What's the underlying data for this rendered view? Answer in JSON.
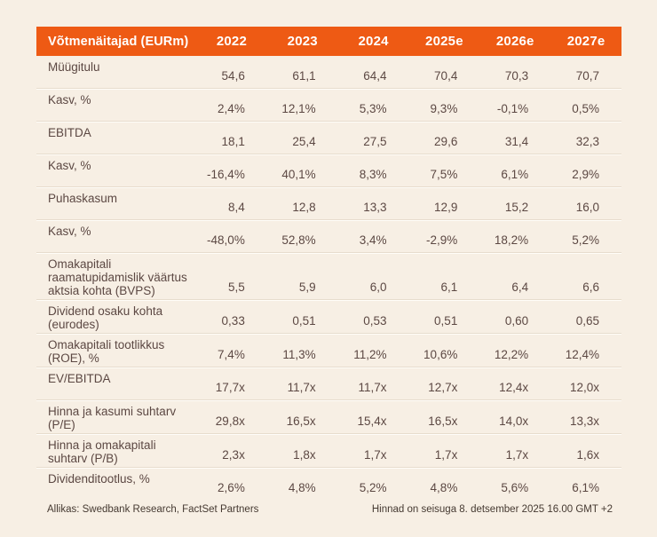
{
  "theme": {
    "background": "#f7efe4",
    "header_bg": "#ee5a14",
    "header_text": "#ffffff",
    "body_text": "#5c4843"
  },
  "table": {
    "header": {
      "label": "Võtmenäitajad (EURm)",
      "years": [
        "2022",
        "2023",
        "2024",
        "2025e",
        "2026e",
        "2027e"
      ]
    },
    "rows": [
      {
        "label": "Müügitulu",
        "values": [
          "54,6",
          "61,1",
          "64,4",
          "70,4",
          "70,3",
          "70,7"
        ]
      },
      {
        "label": "Kasv, %",
        "values": [
          "2,4%",
          "12,1%",
          "5,3%",
          "9,3%",
          "-0,1%",
          "0,5%"
        ]
      },
      {
        "label": "EBITDA",
        "values": [
          "18,1",
          "25,4",
          "27,5",
          "29,6",
          "31,4",
          "32,3"
        ]
      },
      {
        "label": "Kasv, %",
        "values": [
          "-16,4%",
          "40,1%",
          "8,3%",
          "7,5%",
          "6,1%",
          "2,9%"
        ]
      },
      {
        "label": "Puhaskasum",
        "values": [
          "8,4",
          "12,8",
          "13,3",
          "12,9",
          "15,2",
          "16,0"
        ]
      },
      {
        "label": "Kasv, %",
        "values": [
          "-48,0%",
          "52,8%",
          "3,4%",
          "-2,9%",
          "18,2%",
          "5,2%"
        ]
      },
      {
        "label": "Omakapitali raamatupidamislik väärtus aktsia kohta (BVPS)",
        "values": [
          "5,5",
          "5,9",
          "6,0",
          "6,1",
          "6,4",
          "6,6"
        ]
      },
      {
        "label": "Dividend osaku kohta (eurodes)",
        "values": [
          "0,33",
          "0,51",
          "0,53",
          "0,51",
          "0,60",
          "0,65"
        ]
      },
      {
        "label": "Omakapitali tootlikkus (ROE), %",
        "values": [
          "7,4%",
          "11,3%",
          "11,2%",
          "10,6%",
          "12,2%",
          "12,4%"
        ]
      },
      {
        "label": "EV/EBITDA",
        "values": [
          "17,7x",
          "11,7x",
          "11,7x",
          "12,7x",
          "12,4x",
          "12,0x"
        ]
      },
      {
        "label": "Hinna ja kasumi suhtarv (P/E)",
        "values": [
          "29,8x",
          "16,5x",
          "15,4x",
          "16,5x",
          "14,0x",
          "13,3x"
        ]
      },
      {
        "label": "Hinna ja omakapitali suhtarv (P/B)",
        "values": [
          "2,3x",
          "1,8x",
          "1,7x",
          "1,7x",
          "1,7x",
          "1,6x"
        ]
      },
      {
        "label": "Dividenditootlus, %",
        "values": [
          "2,6%",
          "4,8%",
          "5,2%",
          "4,8%",
          "5,6%",
          "6,1%"
        ]
      }
    ]
  },
  "footer": {
    "source": "Allikas: Swedbank Research, FactSet Partners",
    "price_note": "Hinnad on seisuga 8. detsember 2025 16.00 GMT +2"
  }
}
